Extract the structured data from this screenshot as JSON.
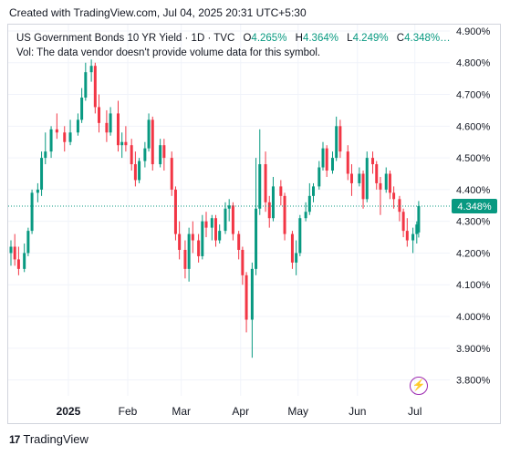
{
  "caption": "Created with TradingView.com, Jul 04, 2025 20:31 UTC+5:30",
  "legend": {
    "symbol": "US Government Bonds 10 YR Yield · 1D · TVC",
    "o_label": "O",
    "o_value": "4.265%",
    "h_label": "H",
    "h_value": "4.364%",
    "l_label": "L",
    "l_value": "4.249%",
    "c_label": "C",
    "c_value": "4.348%…"
  },
  "volume_note": "Vol: The data vendor doesn't provide volume data for this symbol.",
  "branding": {
    "logo": "17",
    "name": "TradingView"
  },
  "colors": {
    "up": "#089981",
    "down": "#f23645",
    "grid": "#f0f3fa",
    "accent": "#9c27b0",
    "last_price": "#089981"
  },
  "chart_data": {
    "type": "candlestick",
    "y_unit": "%",
    "ylim": [
      3.75,
      4.92
    ],
    "y_ticks": [
      "4.900%",
      "4.800%",
      "4.700%",
      "4.600%",
      "4.500%",
      "4.400%",
      "4.300%",
      "4.200%",
      "4.100%",
      "4.000%",
      "3.900%",
      "3.800%"
    ],
    "y_tick_values": [
      4.9,
      4.8,
      4.7,
      4.6,
      4.5,
      4.4,
      4.3,
      4.2,
      4.1,
      4.0,
      3.9,
      3.8
    ],
    "x_ticks": [
      "2025",
      "Feb",
      "Mar",
      "Apr",
      "May",
      "Jun",
      "Jul"
    ],
    "x_tick_dates": [
      "2025-01-01",
      "2025-02-01",
      "2025-03-01",
      "2025-04-01",
      "2025-05-01",
      "2025-06-01",
      "2025-07-01"
    ],
    "date_range": [
      "2024-12-02",
      "2025-07-04"
    ],
    "last_price": 4.348,
    "last_price_label": "4.348%",
    "grid": true,
    "series": [
      {
        "date": "2024-12-02",
        "o": 4.2,
        "h": 4.24,
        "l": 4.16,
        "c": 4.22
      },
      {
        "date": "2024-12-04",
        "o": 4.22,
        "h": 4.26,
        "l": 4.16,
        "c": 4.18
      },
      {
        "date": "2024-12-06",
        "o": 4.18,
        "h": 4.22,
        "l": 4.13,
        "c": 4.15
      },
      {
        "date": "2024-12-09",
        "o": 4.15,
        "h": 4.23,
        "l": 4.14,
        "c": 4.2
      },
      {
        "date": "2024-12-11",
        "o": 4.2,
        "h": 4.28,
        "l": 4.19,
        "c": 4.27
      },
      {
        "date": "2024-12-13",
        "o": 4.27,
        "h": 4.4,
        "l": 4.26,
        "c": 4.39
      },
      {
        "date": "2024-12-16",
        "o": 4.39,
        "h": 4.42,
        "l": 4.36,
        "c": 4.4
      },
      {
        "date": "2024-12-18",
        "o": 4.4,
        "h": 4.52,
        "l": 4.38,
        "c": 4.5
      },
      {
        "date": "2024-12-20",
        "o": 4.5,
        "h": 4.58,
        "l": 4.48,
        "c": 4.52
      },
      {
        "date": "2024-12-23",
        "o": 4.52,
        "h": 4.6,
        "l": 4.5,
        "c": 4.59
      },
      {
        "date": "2024-12-26",
        "o": 4.59,
        "h": 4.64,
        "l": 4.56,
        "c": 4.58
      },
      {
        "date": "2024-12-30",
        "o": 4.58,
        "h": 4.6,
        "l": 4.52,
        "c": 4.55
      },
      {
        "date": "2025-01-02",
        "o": 4.55,
        "h": 4.62,
        "l": 4.54,
        "c": 4.58
      },
      {
        "date": "2025-01-06",
        "o": 4.58,
        "h": 4.64,
        "l": 4.57,
        "c": 4.62
      },
      {
        "date": "2025-01-08",
        "o": 4.62,
        "h": 4.72,
        "l": 4.61,
        "c": 4.69
      },
      {
        "date": "2025-01-10",
        "o": 4.69,
        "h": 4.8,
        "l": 4.68,
        "c": 4.77
      },
      {
        "date": "2025-01-13",
        "o": 4.77,
        "h": 4.81,
        "l": 4.74,
        "c": 4.79
      },
      {
        "date": "2025-01-15",
        "o": 4.79,
        "h": 4.8,
        "l": 4.64,
        "c": 4.66
      },
      {
        "date": "2025-01-17",
        "o": 4.66,
        "h": 4.7,
        "l": 4.58,
        "c": 4.61
      },
      {
        "date": "2025-01-21",
        "o": 4.61,
        "h": 4.65,
        "l": 4.55,
        "c": 4.58
      },
      {
        "date": "2025-01-23",
        "o": 4.58,
        "h": 4.66,
        "l": 4.57,
        "c": 4.64
      },
      {
        "date": "2025-01-27",
        "o": 4.64,
        "h": 4.68,
        "l": 4.52,
        "c": 4.54
      },
      {
        "date": "2025-01-29",
        "o": 4.54,
        "h": 4.58,
        "l": 4.5,
        "c": 4.55
      },
      {
        "date": "2025-01-31",
        "o": 4.55,
        "h": 4.6,
        "l": 4.52,
        "c": 4.54
      },
      {
        "date": "2025-02-03",
        "o": 4.54,
        "h": 4.56,
        "l": 4.46,
        "c": 4.48
      },
      {
        "date": "2025-02-05",
        "o": 4.48,
        "h": 4.52,
        "l": 4.41,
        "c": 4.43
      },
      {
        "date": "2025-02-07",
        "o": 4.43,
        "h": 4.5,
        "l": 4.42,
        "c": 4.49
      },
      {
        "date": "2025-02-10",
        "o": 4.49,
        "h": 4.55,
        "l": 4.47,
        "c": 4.53
      },
      {
        "date": "2025-02-12",
        "o": 4.53,
        "h": 4.64,
        "l": 4.52,
        "c": 4.62
      },
      {
        "date": "2025-02-14",
        "o": 4.62,
        "h": 4.63,
        "l": 4.46,
        "c": 4.48
      },
      {
        "date": "2025-02-18",
        "o": 4.48,
        "h": 4.56,
        "l": 4.47,
        "c": 4.54
      },
      {
        "date": "2025-02-20",
        "o": 4.54,
        "h": 4.56,
        "l": 4.46,
        "c": 4.5
      },
      {
        "date": "2025-02-24",
        "o": 4.5,
        "h": 4.52,
        "l": 4.38,
        "c": 4.4
      },
      {
        "date": "2025-02-26",
        "o": 4.4,
        "h": 4.41,
        "l": 4.24,
        "c": 4.26
      },
      {
        "date": "2025-02-28",
        "o": 4.26,
        "h": 4.3,
        "l": 4.18,
        "c": 4.21
      },
      {
        "date": "2025-03-03",
        "o": 4.21,
        "h": 4.24,
        "l": 4.12,
        "c": 4.15
      },
      {
        "date": "2025-03-05",
        "o": 4.15,
        "h": 4.28,
        "l": 4.11,
        "c": 4.26
      },
      {
        "date": "2025-03-07",
        "o": 4.26,
        "h": 4.3,
        "l": 4.2,
        "c": 4.24
      },
      {
        "date": "2025-03-10",
        "o": 4.24,
        "h": 4.26,
        "l": 4.17,
        "c": 4.19
      },
      {
        "date": "2025-03-12",
        "o": 4.19,
        "h": 4.32,
        "l": 4.18,
        "c": 4.3
      },
      {
        "date": "2025-03-14",
        "o": 4.3,
        "h": 4.33,
        "l": 4.25,
        "c": 4.28
      },
      {
        "date": "2025-03-17",
        "o": 4.28,
        "h": 4.32,
        "l": 4.24,
        "c": 4.31
      },
      {
        "date": "2025-03-19",
        "o": 4.31,
        "h": 4.32,
        "l": 4.22,
        "c": 4.24
      },
      {
        "date": "2025-03-21",
        "o": 4.24,
        "h": 4.29,
        "l": 4.23,
        "c": 4.27
      },
      {
        "date": "2025-03-24",
        "o": 4.27,
        "h": 4.36,
        "l": 4.26,
        "c": 4.34
      },
      {
        "date": "2025-03-26",
        "o": 4.34,
        "h": 4.37,
        "l": 4.3,
        "c": 4.35
      },
      {
        "date": "2025-03-28",
        "o": 4.35,
        "h": 4.36,
        "l": 4.24,
        "c": 4.26
      },
      {
        "date": "2025-03-31",
        "o": 4.26,
        "h": 4.27,
        "l": 4.18,
        "c": 4.21
      },
      {
        "date": "2025-04-02",
        "o": 4.21,
        "h": 4.22,
        "l": 4.1,
        "c": 4.13
      },
      {
        "date": "2025-04-04",
        "o": 4.13,
        "h": 4.14,
        "l": 3.95,
        "c": 3.99
      },
      {
        "date": "2025-04-07",
        "o": 3.99,
        "h": 4.17,
        "l": 3.87,
        "c": 4.15
      },
      {
        "date": "2025-04-09",
        "o": 4.15,
        "h": 4.5,
        "l": 4.13,
        "c": 4.34
      },
      {
        "date": "2025-04-11",
        "o": 4.34,
        "h": 4.59,
        "l": 4.32,
        "c": 4.48
      },
      {
        "date": "2025-04-14",
        "o": 4.48,
        "h": 4.52,
        "l": 4.33,
        "c": 4.36
      },
      {
        "date": "2025-04-16",
        "o": 4.36,
        "h": 4.38,
        "l": 4.28,
        "c": 4.31
      },
      {
        "date": "2025-04-18",
        "o": 4.31,
        "h": 4.44,
        "l": 4.3,
        "c": 4.41
      },
      {
        "date": "2025-04-22",
        "o": 4.41,
        "h": 4.43,
        "l": 4.35,
        "c": 4.38
      },
      {
        "date": "2025-04-24",
        "o": 4.38,
        "h": 4.39,
        "l": 4.24,
        "c": 4.26
      },
      {
        "date": "2025-04-28",
        "o": 4.26,
        "h": 4.27,
        "l": 4.15,
        "c": 4.17
      },
      {
        "date": "2025-04-30",
        "o": 4.17,
        "h": 4.24,
        "l": 4.13,
        "c": 4.2
      },
      {
        "date": "2025-05-02",
        "o": 4.2,
        "h": 4.32,
        "l": 4.19,
        "c": 4.31
      },
      {
        "date": "2025-05-05",
        "o": 4.31,
        "h": 4.36,
        "l": 4.3,
        "c": 4.33
      },
      {
        "date": "2025-05-07",
        "o": 4.33,
        "h": 4.42,
        "l": 4.32,
        "c": 4.38
      },
      {
        "date": "2025-05-09",
        "o": 4.38,
        "h": 4.42,
        "l": 4.36,
        "c": 4.41
      },
      {
        "date": "2025-05-12",
        "o": 4.41,
        "h": 4.49,
        "l": 4.4,
        "c": 4.47
      },
      {
        "date": "2025-05-14",
        "o": 4.47,
        "h": 4.55,
        "l": 4.46,
        "c": 4.53
      },
      {
        "date": "2025-05-16",
        "o": 4.53,
        "h": 4.54,
        "l": 4.44,
        "c": 4.46
      },
      {
        "date": "2025-05-19",
        "o": 4.46,
        "h": 4.52,
        "l": 4.45,
        "c": 4.5
      },
      {
        "date": "2025-05-21",
        "o": 4.5,
        "h": 4.63,
        "l": 4.49,
        "c": 4.6
      },
      {
        "date": "2025-05-23",
        "o": 4.6,
        "h": 4.62,
        "l": 4.5,
        "c": 4.52
      },
      {
        "date": "2025-05-27",
        "o": 4.52,
        "h": 4.54,
        "l": 4.43,
        "c": 4.45
      },
      {
        "date": "2025-05-29",
        "o": 4.45,
        "h": 4.48,
        "l": 4.38,
        "c": 4.42
      },
      {
        "date": "2025-06-02",
        "o": 4.42,
        "h": 4.47,
        "l": 4.41,
        "c": 4.45
      },
      {
        "date": "2025-06-04",
        "o": 4.45,
        "h": 4.46,
        "l": 4.34,
        "c": 4.37
      },
      {
        "date": "2025-06-06",
        "o": 4.37,
        "h": 4.52,
        "l": 4.36,
        "c": 4.5
      },
      {
        "date": "2025-06-09",
        "o": 4.5,
        "h": 4.52,
        "l": 4.45,
        "c": 4.48
      },
      {
        "date": "2025-06-11",
        "o": 4.48,
        "h": 4.49,
        "l": 4.4,
        "c": 4.42
      },
      {
        "date": "2025-06-13",
        "o": 4.42,
        "h": 4.44,
        "l": 4.32,
        "c": 4.4
      },
      {
        "date": "2025-06-16",
        "o": 4.4,
        "h": 4.47,
        "l": 4.39,
        "c": 4.45
      },
      {
        "date": "2025-06-18",
        "o": 4.45,
        "h": 4.46,
        "l": 4.37,
        "c": 4.39
      },
      {
        "date": "2025-06-20",
        "o": 4.39,
        "h": 4.41,
        "l": 4.34,
        "c": 4.37
      },
      {
        "date": "2025-06-23",
        "o": 4.37,
        "h": 4.38,
        "l": 4.3,
        "c": 4.33
      },
      {
        "date": "2025-06-25",
        "o": 4.33,
        "h": 4.34,
        "l": 4.25,
        "c": 4.27
      },
      {
        "date": "2025-06-27",
        "o": 4.27,
        "h": 4.31,
        "l": 4.22,
        "c": 4.24
      },
      {
        "date": "2025-06-30",
        "o": 4.24,
        "h": 4.28,
        "l": 4.2,
        "c": 4.26
      },
      {
        "date": "2025-07-02",
        "o": 4.26,
        "h": 4.3,
        "l": 4.23,
        "c": 4.29
      },
      {
        "date": "2025-07-03",
        "o": 4.265,
        "h": 4.364,
        "l": 4.249,
        "c": 4.348
      }
    ]
  }
}
